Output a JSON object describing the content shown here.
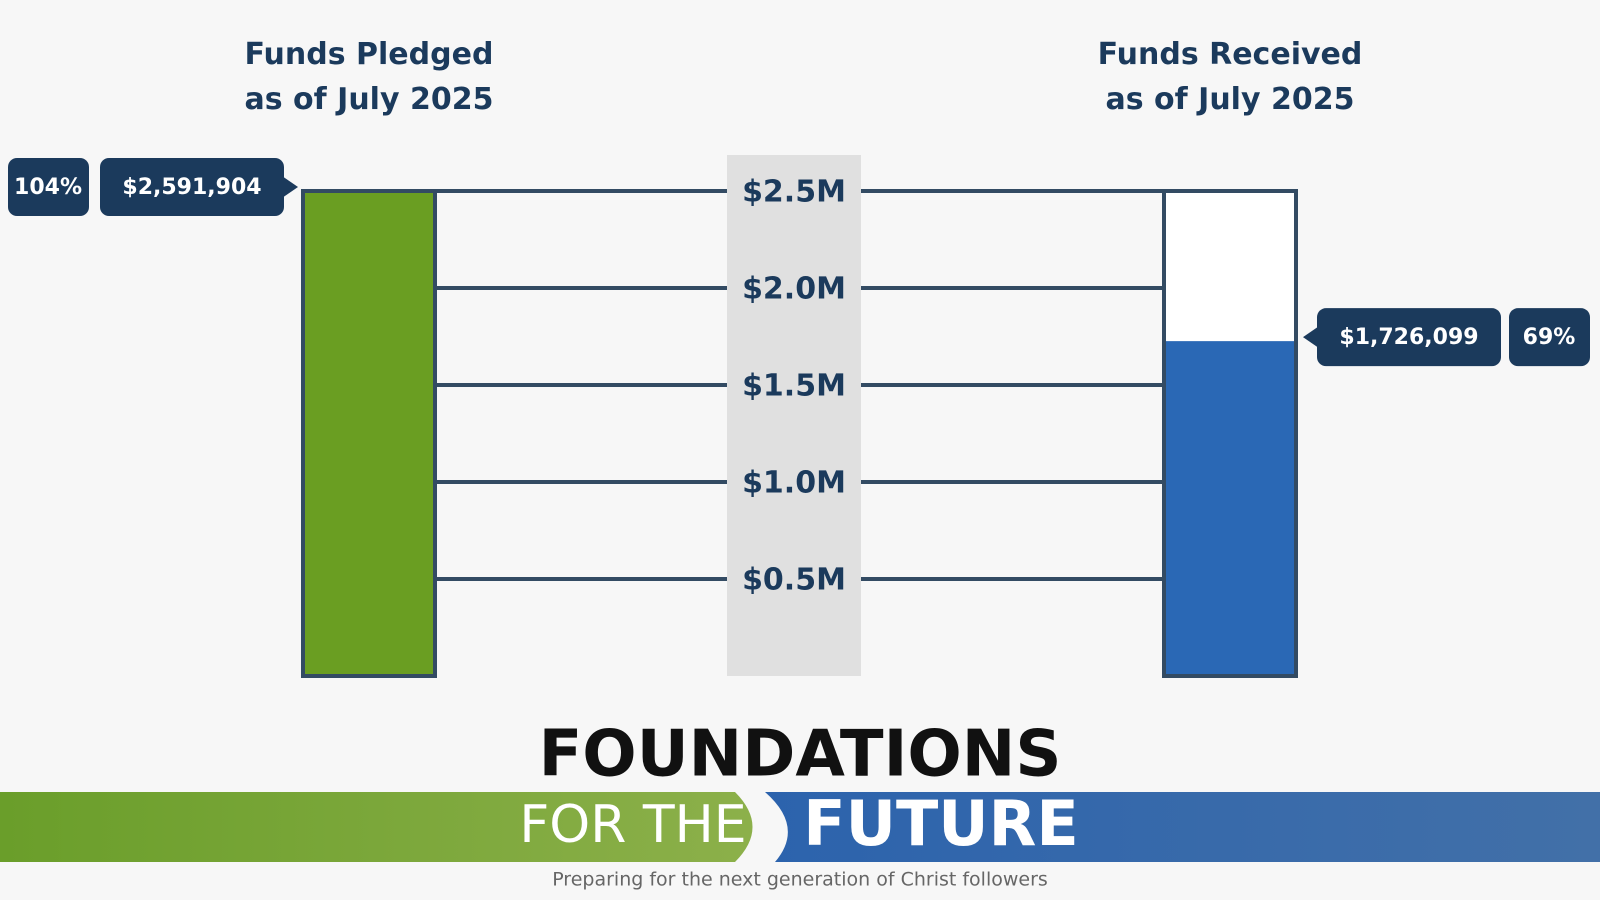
{
  "chart_data": {
    "type": "bar",
    "categories": [
      "Funds Pledged\nas of July 2025",
      "Funds Received\nas of July 2025"
    ],
    "values": [
      2591904,
      1726099
    ],
    "value_labels": [
      "$2,591,904",
      "$1,726,099"
    ],
    "percents": [
      104,
      69
    ],
    "percent_labels": [
      "104%",
      "69%"
    ],
    "colors": [
      "#6a9e22",
      "#2a68b5"
    ],
    "ylim": [
      0,
      2500000
    ],
    "yticks": [
      {
        "value": 500000,
        "label": "$0.5M"
      },
      {
        "value": 1000000,
        "label": "$1.0M"
      },
      {
        "value": 1500000,
        "label": "$1.5M"
      },
      {
        "value": 2000000,
        "label": "$2.0M"
      },
      {
        "value": 2500000,
        "label": "$2.5M"
      }
    ],
    "grid": true
  },
  "footer": {
    "title": "FOUNDATIONS",
    "line1": "FOR THE",
    "line2": "FUTURE",
    "tagline": "Preparing for the next generation of Christ followers"
  }
}
